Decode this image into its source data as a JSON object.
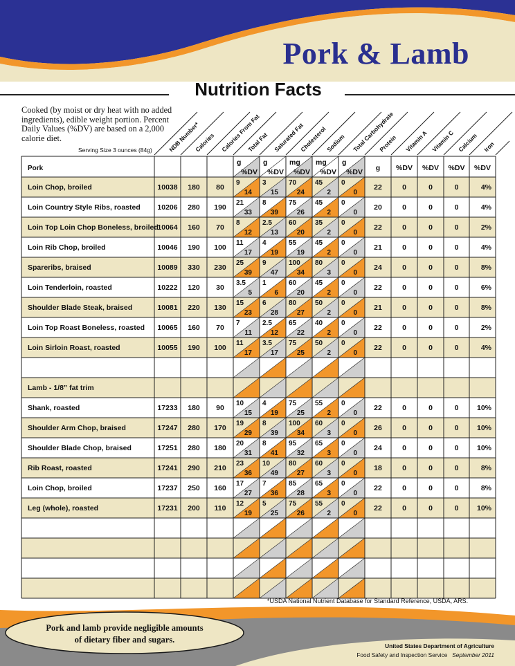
{
  "header": {
    "title": "Pork & Lamb",
    "subtitle": "Nutrition Facts",
    "intro": "Cooked (by moist or dry heat with no added ingredients), edible weight portion.  Percent Daily Values (%DV) are based on a 2,000 calorie diet.",
    "serving_size": "Serving Size 3 ounces (84g)"
  },
  "columns": [
    "NDB Number*",
    "Calories",
    "Calories From Fat",
    "Total Fat",
    "Saturated Fat",
    "Cholesterol",
    "Sodium",
    "Total Carbohydrate",
    "Protein",
    "Vitamin A",
    "Vitamin C",
    "Calcium",
    "Iron"
  ],
  "units": {
    "first": "Pork",
    "pairs": [
      {
        "top": "g",
        "bottom": "%DV"
      },
      {
        "top": "g",
        "bottom": "%DV"
      },
      {
        "top": "mg",
        "bottom": "%DV"
      },
      {
        "top": "mg",
        "bottom": "%DV"
      },
      {
        "top": "g",
        "bottom": "%DV"
      }
    ],
    "singles": [
      "g",
      "%DV",
      "%DV",
      "%DV",
      "%DV"
    ]
  },
  "rows": [
    {
      "name": "Loin Chop, broiled",
      "ndb": "10038",
      "cal": "180",
      "calfat": "80",
      "pairs": [
        [
          "9",
          "14"
        ],
        [
          "3",
          "15"
        ],
        [
          "70",
          "24"
        ],
        [
          "45",
          "2"
        ],
        [
          "0",
          "0"
        ]
      ],
      "singles": [
        "22",
        "0",
        "0",
        "0",
        "4%"
      ]
    },
    {
      "name": "Loin Country Style Ribs, roasted",
      "ndb": "10206",
      "cal": "280",
      "calfat": "190",
      "pairs": [
        [
          "21",
          "33"
        ],
        [
          "8",
          "39"
        ],
        [
          "75",
          "26"
        ],
        [
          "45",
          "2"
        ],
        [
          "0",
          "0"
        ]
      ],
      "singles": [
        "20",
        "0",
        "0",
        "0",
        "4%"
      ]
    },
    {
      "name": "Loin Top Loin Chop Boneless, broiled",
      "ndb": "10064",
      "cal": "160",
      "calfat": "70",
      "pairs": [
        [
          "8",
          "12"
        ],
        [
          "2.5",
          "13"
        ],
        [
          "60",
          "20"
        ],
        [
          "35",
          "2"
        ],
        [
          "0",
          "0"
        ]
      ],
      "singles": [
        "22",
        "0",
        "0",
        "0",
        "2%"
      ]
    },
    {
      "name": "Loin Rib Chop, broiled",
      "ndb": "10046",
      "cal": "190",
      "calfat": "100",
      "pairs": [
        [
          "11",
          "17"
        ],
        [
          "4",
          "19"
        ],
        [
          "55",
          "19"
        ],
        [
          "45",
          "2"
        ],
        [
          "0",
          "0"
        ]
      ],
      "singles": [
        "21",
        "0",
        "0",
        "0",
        "4%"
      ]
    },
    {
      "name": "Spareribs, braised",
      "ndb": "10089",
      "cal": "330",
      "calfat": "230",
      "pairs": [
        [
          "25",
          "39"
        ],
        [
          "9",
          "47"
        ],
        [
          "100",
          "34"
        ],
        [
          "80",
          "3"
        ],
        [
          "0",
          "0"
        ]
      ],
      "singles": [
        "24",
        "0",
        "0",
        "0",
        "8%"
      ]
    },
    {
      "name": "Loin Tenderloin, roasted",
      "ndb": "10222",
      "cal": "120",
      "calfat": "30",
      "pairs": [
        [
          "3.5",
          "5"
        ],
        [
          "1",
          "6"
        ],
        [
          "60",
          "20"
        ],
        [
          "45",
          "2"
        ],
        [
          "0",
          "0"
        ]
      ],
      "singles": [
        "22",
        "0",
        "0",
        "0",
        "6%"
      ]
    },
    {
      "name": "Shoulder Blade Steak, braised",
      "ndb": "10081",
      "cal": "220",
      "calfat": "130",
      "pairs": [
        [
          "15",
          "23"
        ],
        [
          "6",
          "28"
        ],
        [
          "80",
          "27"
        ],
        [
          "50",
          "2"
        ],
        [
          "0",
          "0"
        ]
      ],
      "singles": [
        "21",
        "0",
        "0",
        "0",
        "8%"
      ]
    },
    {
      "name": "Loin Top Roast Boneless, roasted",
      "ndb": "10065",
      "cal": "160",
      "calfat": "70",
      "pairs": [
        [
          "7",
          "11"
        ],
        [
          "2.5",
          "12"
        ],
        [
          "65",
          "22"
        ],
        [
          "40",
          "2"
        ],
        [
          "0",
          "0"
        ]
      ],
      "singles": [
        "22",
        "0",
        "0",
        "0",
        "2%"
      ]
    },
    {
      "name": "Loin Sirloin Roast, roasted",
      "ndb": "10055",
      "cal": "190",
      "calfat": "100",
      "pairs": [
        [
          "11",
          "17"
        ],
        [
          "3.5",
          "17"
        ],
        [
          "75",
          "25"
        ],
        [
          "50",
          "2"
        ],
        [
          "0",
          "0"
        ]
      ],
      "singles": [
        "22",
        "0",
        "0",
        "0",
        "4%"
      ]
    },
    {
      "name": ""
    },
    {
      "name": "Lamb - 1/8” fat trim",
      "section": true
    },
    {
      "name": "Shank, roasted",
      "ndb": "17233",
      "cal": "180",
      "calfat": "90",
      "pairs": [
        [
          "10",
          "15"
        ],
        [
          "4",
          "19"
        ],
        [
          "75",
          "25"
        ],
        [
          "55",
          "2"
        ],
        [
          "0",
          "0"
        ]
      ],
      "singles": [
        "22",
        "0",
        "0",
        "0",
        "10%"
      ]
    },
    {
      "name": "Shoulder Arm Chop, braised",
      "ndb": "17247",
      "cal": "280",
      "calfat": "170",
      "pairs": [
        [
          "19",
          "29"
        ],
        [
          "8",
          "39"
        ],
        [
          "100",
          "34"
        ],
        [
          "60",
          "3"
        ],
        [
          "0",
          "0"
        ]
      ],
      "singles": [
        "26",
        "0",
        "0",
        "0",
        "10%"
      ]
    },
    {
      "name": "Shoulder Blade Chop, braised",
      "ndb": "17251",
      "cal": "280",
      "calfat": "180",
      "pairs": [
        [
          "20",
          "31"
        ],
        [
          "8",
          "41"
        ],
        [
          "95",
          "32"
        ],
        [
          "65",
          "3"
        ],
        [
          "0",
          "0"
        ]
      ],
      "singles": [
        "24",
        "0",
        "0",
        "0",
        "10%"
      ]
    },
    {
      "name": "Rib Roast, roasted",
      "ndb": "17241",
      "cal": "290",
      "calfat": "210",
      "pairs": [
        [
          "23",
          "36"
        ],
        [
          "10",
          "49"
        ],
        [
          "80",
          "27"
        ],
        [
          "60",
          "3"
        ],
        [
          "0",
          "0"
        ]
      ],
      "singles": [
        "18",
        "0",
        "0",
        "0",
        "8%"
      ]
    },
    {
      "name": "Loin Chop, broiled",
      "ndb": "17237",
      "cal": "250",
      "calfat": "160",
      "pairs": [
        [
          "17",
          "27"
        ],
        [
          "7",
          "36"
        ],
        [
          "85",
          "28"
        ],
        [
          "65",
          "3"
        ],
        [
          "0",
          "0"
        ]
      ],
      "singles": [
        "22",
        "0",
        "0",
        "0",
        "8%"
      ]
    },
    {
      "name": "Leg (whole), roasted",
      "ndb": "17231",
      "cal": "200",
      "calfat": "110",
      "pairs": [
        [
          "12",
          "19"
        ],
        [
          "5",
          "25"
        ],
        [
          "75",
          "26"
        ],
        [
          "55",
          "2"
        ],
        [
          "0",
          "0"
        ]
      ],
      "singles": [
        "22",
        "0",
        "0",
        "0",
        "10%"
      ]
    },
    {
      "name": ""
    },
    {
      "name": ""
    },
    {
      "name": ""
    },
    {
      "name": ""
    }
  ],
  "footnote": "*USDA National Nutrient Database for Standard Reference, USDA, ARS.",
  "footer": {
    "note_line1": "Pork and lamb provide negligible amounts",
    "note_line2": "of dietary fiber and sugars.",
    "agency": "United States Department of Agriculture",
    "service": "Food Safety and Inspection Service",
    "date": "September 2011"
  },
  "colors": {
    "navy": "#2b3194",
    "orange": "#f2962a",
    "cream": "#eee6c4",
    "gray_band": "#8a8a8a",
    "title_blue": "#2a2f8f"
  }
}
